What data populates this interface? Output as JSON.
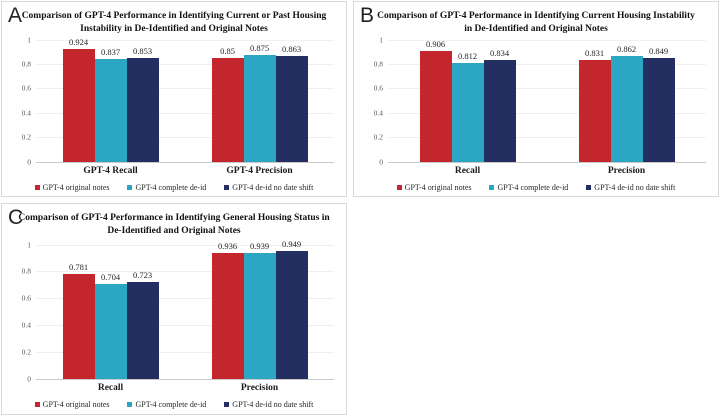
{
  "figure": {
    "background": "#ffffff",
    "panel_border_color": "#d8d8d8",
    "colors": {
      "original_notes_red": "#c4262d",
      "complete_deid_teal": "#2ba6c3",
      "deid_no_date_shift_navy": "#232f60"
    }
  },
  "chart_data": [
    {
      "panel_letter": "A",
      "type": "bar",
      "title": "Comparison of GPT-4 Performance in Identifying Current or Past Housing Instability in De-Identified and Original Notes",
      "title_lines": [
        "Comparison of GPT-4 Performance in Identifying Current or Past Housing",
        "Instability in De-Identified and Original Notes"
      ],
      "categories": [
        "GPT-4 Recall",
        "GPT-4 Precision"
      ],
      "series": [
        {
          "name": "GPT-4 original notes",
          "color": "#c4262d",
          "values": [
            0.924,
            0.85
          ],
          "labels": [
            "0.924",
            "0.85"
          ]
        },
        {
          "name": "GPT-4 complete de-id",
          "color": "#2ba6c3",
          "values": [
            0.837,
            0.875
          ],
          "labels": [
            "0.837",
            "0.875"
          ]
        },
        {
          "name": "GPT-4 de-id no date shift",
          "color": "#232f60",
          "values": [
            0.853,
            0.863
          ],
          "labels": [
            "0.853",
            "0.863"
          ]
        }
      ],
      "ylim": [
        0,
        1
      ],
      "y_ticks": [
        {
          "label": "1",
          "v": 1
        },
        {
          "label": "0.8",
          "v": 0.8
        },
        {
          "label": "0.6",
          "v": 0.6
        },
        {
          "label": "0.4",
          "v": 0.4
        },
        {
          "label": "0.2",
          "v": 0.2
        },
        {
          "label": "0",
          "v": 0
        }
      ],
      "grid": true,
      "legend_position": "bottom"
    },
    {
      "panel_letter": "B",
      "type": "bar",
      "title": "Comparison of GPT-4 Performance in Identifying Current Housing Instability in De-Identified and Original Notes",
      "title_lines": [
        "Comparison of GPT-4 Performance in Identifying Current Housing Instability",
        "in De-Identified and Original Notes"
      ],
      "categories": [
        "Recall",
        "Precision"
      ],
      "series": [
        {
          "name": "GPT-4 original notes",
          "color": "#c4262d",
          "values": [
            0.906,
            0.831
          ],
          "labels": [
            "0.906",
            "0.831"
          ]
        },
        {
          "name": "GPT-4 complete de-id",
          "color": "#2ba6c3",
          "values": [
            0.812,
            0.862
          ],
          "labels": [
            "0.812",
            "0.862"
          ]
        },
        {
          "name": "GPT-4 de-id no date shift",
          "color": "#232f60",
          "values": [
            0.834,
            0.849
          ],
          "labels": [
            "0.834",
            "0.849"
          ]
        }
      ],
      "ylim": [
        0,
        1
      ],
      "y_ticks": [
        {
          "label": "1",
          "v": 1
        },
        {
          "label": "0.8",
          "v": 0.8
        },
        {
          "label": "0.6",
          "v": 0.6
        },
        {
          "label": "0.4",
          "v": 0.4
        },
        {
          "label": "0.2",
          "v": 0.2
        },
        {
          "label": "0",
          "v": 0
        }
      ],
      "grid": true,
      "legend_position": "bottom"
    },
    {
      "panel_letter": "C",
      "type": "bar",
      "title": "Comparison of GPT-4 Performance in Identifying General Housing Status in De-Identified and Original Notes",
      "title_lines": [
        "Comparison of GPT-4 Performance in Identifying General Housing Status in",
        "De-Identified and Original Notes"
      ],
      "categories": [
        "Recall",
        "Precision"
      ],
      "series": [
        {
          "name": "GPT-4 original notes",
          "color": "#c4262d",
          "values": [
            0.781,
            0.936
          ],
          "labels": [
            "0.781",
            "0.936"
          ]
        },
        {
          "name": "GPT-4 complete de-id",
          "color": "#2ba6c3",
          "values": [
            0.704,
            0.939
          ],
          "labels": [
            "0.704",
            "0.939"
          ]
        },
        {
          "name": "GPT-4 de-id no date shift",
          "color": "#232f60",
          "values": [
            0.723,
            0.949
          ],
          "labels": [
            "0.723",
            "0.949"
          ]
        }
      ],
      "ylim": [
        0,
        1
      ],
      "y_ticks": [
        {
          "label": "1",
          "v": 1
        },
        {
          "label": "0.8",
          "v": 0.8
        },
        {
          "label": "0.6",
          "v": 0.6
        },
        {
          "label": "0.4",
          "v": 0.4
        },
        {
          "label": "0.2",
          "v": 0.2
        },
        {
          "label": "0",
          "v": 0
        }
      ],
      "grid": true,
      "legend_position": "bottom"
    }
  ]
}
